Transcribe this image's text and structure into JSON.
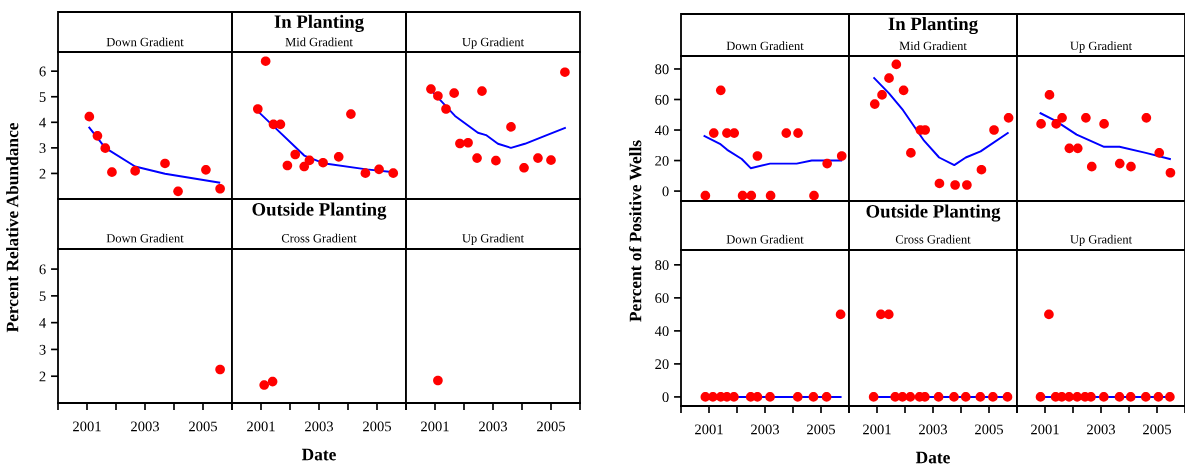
{
  "chart_data": [
    {
      "type": "scatter",
      "title": "Down Gradient",
      "ylabel": "Percent Relative Abundance",
      "xlim": [
        2000,
        2006
      ],
      "ylim": [
        1,
        6.75
      ],
      "yticks": [
        2,
        3,
        4,
        5,
        6
      ],
      "tick_labels": "y",
      "series": [
        {
          "marker": "circle",
          "color": "#ff0000",
          "x": [
            2001.08,
            2001.36,
            2001.63,
            2001.86,
            2002.66,
            2003.69,
            2004.14,
            2005.1,
            2005.59
          ],
          "values": [
            4.22,
            3.47,
            2.99,
            2.05,
            2.1,
            2.39,
            1.3,
            2.14,
            1.4
          ]
        },
        {
          "type": "line",
          "color": "#0000ff",
          "x": [
            2001.08,
            2001.63,
            2002.66,
            2003.69,
            2005.56
          ],
          "values": [
            3.79,
            3.0,
            2.27,
            1.99,
            1.64
          ]
        }
      ]
    },
    {
      "type": "scatter",
      "title": "Mid Gradient",
      "annotations": [
        "In Planting"
      ],
      "xlim": [
        2000,
        2006
      ],
      "ylim": [
        1,
        6.75
      ],
      "tick_labels": false,
      "series": [
        {
          "marker": "circle",
          "color": "#ff0000",
          "x": [
            2000.89,
            2001.16,
            2001.43,
            2001.67,
            2001.91,
            2002.18,
            2002.49,
            2002.67,
            2003.14,
            2003.68,
            2004.1,
            2004.6,
            2005.07,
            2005.56
          ],
          "values": [
            4.52,
            6.39,
            3.92,
            3.92,
            2.31,
            2.74,
            2.27,
            2.51,
            2.42,
            2.65,
            4.32,
            2.01,
            2.16,
            2.01
          ]
        },
        {
          "type": "line",
          "color": "#0000ff",
          "x": [
            2000.93,
            2002.49,
            2003.15,
            2004.64,
            2005.56
          ],
          "values": [
            4.39,
            2.7,
            2.4,
            2.16,
            2.05
          ]
        }
      ]
    },
    {
      "type": "scatter",
      "title": "Up Gradient",
      "xlim": [
        2000,
        2006
      ],
      "ylim": [
        1,
        6.75
      ],
      "tick_labels": false,
      "series": [
        {
          "marker": "circle",
          "color": "#ff0000",
          "x": [
            2000.86,
            2001.1,
            2001.38,
            2001.66,
            2001.86,
            2002.14,
            2002.45,
            2002.62,
            2003.1,
            2003.62,
            2004.07,
            2004.55,
            2005.0,
            2005.48
          ],
          "values": [
            5.3,
            5.03,
            4.52,
            5.14,
            3.17,
            3.2,
            2.6,
            5.22,
            2.5,
            3.82,
            2.22,
            2.6,
            2.52,
            5.96
          ]
        },
        {
          "type": "line",
          "color": "#0000ff",
          "x": [
            2000.86,
            2001.69,
            2002.48,
            2002.76,
            2003.17,
            2003.62,
            2004.1,
            2004.79,
            2005.48
          ],
          "values": [
            5.26,
            4.25,
            3.59,
            3.5,
            3.16,
            3.0,
            3.16,
            3.47,
            3.78
          ]
        }
      ]
    },
    {
      "type": "scatter",
      "title": "Down Gradient",
      "xlim": [
        2000,
        2006
      ],
      "ylim": [
        1,
        6.75
      ],
      "xticks": [
        {
          "value": 2000,
          "label": null
        },
        2001,
        {
          "value": 2002,
          "label": null
        },
        2003,
        {
          "value": 2004,
          "label": null
        },
        2005,
        {
          "value": 2006,
          "label": null
        }
      ],
      "yticks": [
        2,
        3,
        4,
        5,
        6
      ],
      "series": [
        {
          "marker": "circle",
          "color": "#ff0000",
          "x": [
            2005.59
          ],
          "values": [
            2.25
          ]
        }
      ]
    },
    {
      "type": "scatter",
      "title": "Cross Gradient",
      "annotations": [
        "Outside Planting"
      ],
      "xlabel": "Date",
      "xlim": [
        2000,
        2006
      ],
      "ylim": [
        1,
        6.75
      ],
      "xticks": [
        {
          "value": 2000,
          "label": null
        },
        2001,
        {
          "value": 2002,
          "label": null
        },
        2003,
        {
          "value": 2004,
          "label": null
        },
        2005,
        {
          "value": 2006,
          "label": null
        }
      ],
      "tick_labels": "x",
      "series": [
        {
          "marker": "circle",
          "color": "#ff0000",
          "x": [
            2001.11,
            2001.4
          ],
          "values": [
            1.67,
            1.8
          ]
        }
      ]
    },
    {
      "type": "scatter",
      "title": "Up Gradient",
      "xlim": [
        2000,
        2006
      ],
      "ylim": [
        1,
        6.75
      ],
      "xticks": [
        {
          "value": 2000,
          "label": null
        },
        2001,
        {
          "value": 2002,
          "label": null
        },
        2003,
        {
          "value": 2004,
          "label": null
        },
        2005,
        {
          "value": 2006,
          "label": null
        }
      ],
      "tick_labels": "x",
      "series": [
        {
          "marker": "circle",
          "color": "#ff0000",
          "x": [
            2001.1
          ],
          "values": [
            1.84
          ]
        }
      ]
    },
    {
      "type": "scatter",
      "title": "Down Gradient",
      "ylabel": "Percent of Positive Wells",
      "xlim": [
        2000,
        2006
      ],
      "ylim": [
        -6.5,
        88.5
      ],
      "yticks": [
        0,
        20,
        40,
        60,
        80
      ],
      "tick_labels": "y",
      "series": [
        {
          "marker": "circle",
          "color": "#ff0000",
          "x": [
            2000.87,
            2001.17,
            2001.42,
            2001.64,
            2001.9,
            2002.2,
            2002.51,
            2002.73,
            2003.2,
            2003.76,
            2004.18,
            2004.75,
            2005.22,
            2005.74
          ],
          "values": [
            -3,
            38,
            66,
            38,
            38,
            -3,
            -3,
            23,
            -3,
            38,
            38,
            -3,
            18,
            23
          ]
        },
        {
          "type": "line",
          "color": "#0000ff",
          "x": [
            2000.84,
            2001.39,
            2001.65,
            2002.17,
            2002.49,
            2003.18,
            2004.13,
            2004.67,
            2005.72
          ],
          "values": [
            36,
            31,
            27,
            21,
            15,
            18,
            18,
            20,
            20
          ]
        }
      ]
    },
    {
      "type": "scatter",
      "title": "Mid Gradient",
      "annotations": [
        "In Planting"
      ],
      "xlim": [
        2000,
        2006
      ],
      "ylim": [
        -6.5,
        88.5
      ],
      "tick_labels": false,
      "series": [
        {
          "marker": "circle",
          "color": "#ff0000",
          "x": [
            2000.92,
            2001.18,
            2001.43,
            2001.69,
            2001.95,
            2002.21,
            2002.55,
            2002.72,
            2003.23,
            2003.79,
            2004.21,
            2004.73,
            2005.18,
            2005.7
          ],
          "values": [
            57,
            63,
            74,
            83,
            66,
            25,
            40,
            40,
            5,
            4,
            4,
            14,
            40,
            48
          ]
        },
        {
          "type": "line",
          "color": "#0000ff",
          "x": [
            2000.9,
            2001.43,
            2001.93,
            2002.68,
            2003.22,
            2003.76,
            2004.17,
            2004.7,
            2005.67
          ],
          "values": [
            74,
            64,
            53,
            33,
            22,
            17,
            22,
            26,
            38
          ]
        }
      ]
    },
    {
      "type": "scatter",
      "title": "Up Gradient",
      "xlim": [
        2000,
        2006
      ],
      "ylim": [
        -6.5,
        88.5
      ],
      "tick_labels": false,
      "series": [
        {
          "marker": "circle",
          "color": "#ff0000",
          "x": [
            2000.86,
            2001.16,
            2001.4,
            2001.61,
            2001.87,
            2002.17,
            2002.46,
            2002.67,
            2003.11,
            2003.67,
            2004.07,
            2004.62,
            2005.08,
            2005.48
          ],
          "values": [
            44,
            63,
            44,
            48,
            28,
            28,
            48,
            16,
            44,
            18,
            16,
            48,
            25,
            12
          ]
        },
        {
          "type": "line",
          "color": "#0000ff",
          "x": [
            2000.84,
            2001.38,
            2002.13,
            2003.11,
            2003.66,
            2004.6,
            2005.46
          ],
          "values": [
            51,
            46,
            37,
            29,
            29,
            25,
            21
          ]
        }
      ]
    },
    {
      "type": "scatter",
      "title": "Down Gradient",
      "xlim": [
        2000,
        2006
      ],
      "ylim": [
        -5.5,
        89
      ],
      "xticks": [
        {
          "value": 2000,
          "label": null
        },
        2001,
        {
          "value": 2002,
          "label": null
        },
        2003,
        {
          "value": 2004,
          "label": null
        },
        2005,
        {
          "value": 2006,
          "label": null
        }
      ],
      "yticks": [
        0,
        20,
        40,
        60,
        80
      ],
      "series": [
        {
          "marker": "circle",
          "color": "#ff0000",
          "x": [
            2000.87,
            2001.14,
            2001.42,
            2001.64,
            2001.89,
            2002.49,
            2002.73,
            2003.18,
            2004.17,
            2004.73,
            2005.2,
            2005.7
          ],
          "values": [
            0,
            0,
            0,
            0,
            0,
            0,
            0,
            0,
            0,
            0,
            0,
            50
          ]
        },
        {
          "type": "line",
          "color": "#0000ff",
          "x": [
            2000.87,
            2005.7
          ],
          "values": [
            0,
            0
          ]
        }
      ]
    },
    {
      "type": "scatter",
      "title": "Cross Gradient",
      "annotations": [
        "Outside Planting"
      ],
      "xlabel": "Date",
      "xlim": [
        2000,
        2006
      ],
      "ylim": [
        -5.5,
        89
      ],
      "xticks": [
        {
          "value": 2000,
          "label": null
        },
        2001,
        {
          "value": 2002,
          "label": null
        },
        2003,
        {
          "value": 2004,
          "label": null
        },
        2005,
        {
          "value": 2006,
          "label": null
        }
      ],
      "tick_labels": "x",
      "series": [
        {
          "marker": "circle",
          "color": "#ff0000",
          "x": [
            2000.88,
            2001.14,
            2001.42,
            2001.65,
            2001.91,
            2002.19,
            2002.52,
            2002.71,
            2003.2,
            2003.75,
            2004.17,
            2004.69,
            2005.14,
            2005.66
          ],
          "values": [
            0,
            50,
            50,
            0,
            0,
            0,
            0,
            0,
            0,
            0,
            0,
            0,
            0,
            0
          ]
        },
        {
          "type": "line",
          "color": "#0000ff",
          "x": [
            2000.88,
            2005.66
          ],
          "values": [
            0,
            0
          ]
        }
      ]
    },
    {
      "type": "scatter",
      "title": "Up Gradient",
      "xlim": [
        2000,
        2006
      ],
      "ylim": [
        -5.5,
        89
      ],
      "xticks": [
        {
          "value": 2000,
          "label": null
        },
        2001,
        {
          "value": 2002,
          "label": null
        },
        2003,
        {
          "value": 2004,
          "label": null
        },
        2005,
        {
          "value": 2006,
          "label": null
        }
      ],
      "tick_labels": "x",
      "series": [
        {
          "marker": "circle",
          "color": "#ff0000",
          "x": [
            2000.84,
            2001.14,
            2001.38,
            2001.6,
            2001.86,
            2002.15,
            2002.43,
            2002.64,
            2003.1,
            2003.66,
            2004.06,
            2004.6,
            2005.05,
            2005.46
          ],
          "values": [
            0,
            50,
            0,
            0,
            0,
            0,
            0,
            0,
            0,
            0,
            0,
            0,
            0,
            0
          ]
        },
        {
          "type": "line",
          "color": "#0000ff",
          "x": [
            2000.84,
            2005.46
          ],
          "values": [
            0,
            0
          ]
        }
      ]
    }
  ]
}
